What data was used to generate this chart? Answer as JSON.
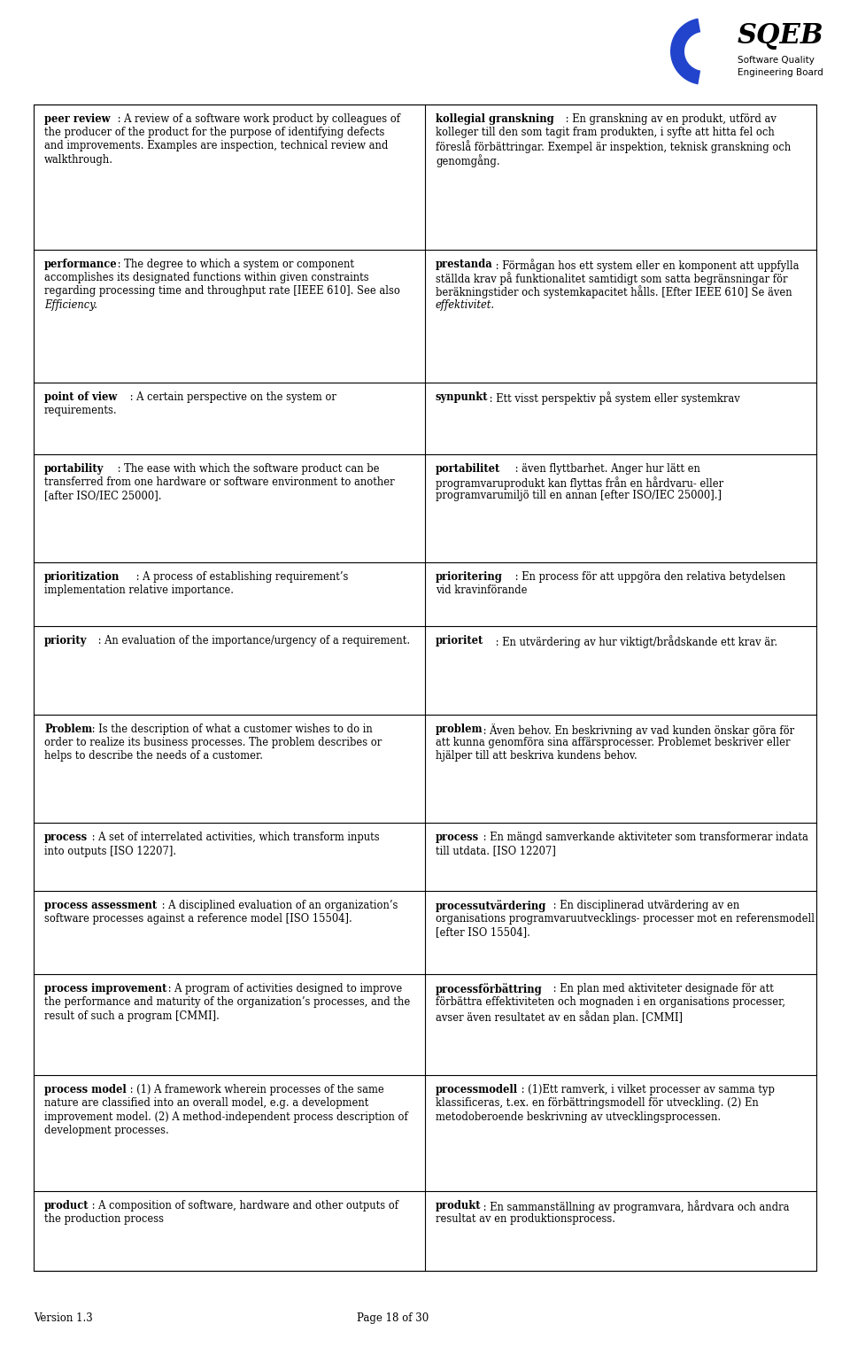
{
  "bg_color": "#ffffff",
  "footer_version": "Version 1.3",
  "footer_page": "Page 18 of 30",
  "rows": [
    {
      "left_bold": "peer review",
      "left_rest": ": A review of a software work product by colleagues of the producer of the product for the purpose of identifying defects and improvements. Examples are inspection, technical review and walkthrough.",
      "left_italic_part": "",
      "right_bold": "kollegial granskning",
      "right_rest": ": En granskning av en produkt, utförd av kolleger till den som tagit fram produkten, i syfte att hitta fel och föreslå förbättringar. Exempel är inspektion, teknisk granskning och genomgång.",
      "right_italic_part": ""
    },
    {
      "left_bold": "performance",
      "left_rest": ": The degree to which a system or component accomplishes its designated functions within given constraints regarding processing time and throughput rate [IEEE 610]. See also ",
      "left_italic_part": "Efficiency.",
      "right_bold": "prestanda",
      "right_rest": ": Förmågan hos ett system eller en komponent att uppfylla ställda krav på funktionalitet samtidigt som satta begränsningar för beräkningstider och systemkapacitet hålls. [Efter IEEE 610] Se även ",
      "right_italic_part": "effektivitet."
    },
    {
      "left_bold": "point of view",
      "left_rest": ": A certain perspective on the system or requirements.",
      "left_italic_part": "",
      "right_bold": "synpunkt",
      "right_rest": ": Ett visst perspektiv på system eller systemkrav",
      "right_italic_part": ""
    },
    {
      "left_bold": "portability",
      "left_rest": ": The ease with which the software product can be transferred from one hardware or software environment to another [after ISO/IEC 25000].",
      "left_italic_part": "",
      "right_bold": "portabilitet",
      "right_rest": ": även flyttbarhet. Anger hur lätt en programvaruprodukt kan flyttas från en hårdvaru- eller programvarumiljö till en annan [efter ISO/IEC 25000].]",
      "right_italic_part": ""
    },
    {
      "left_bold": "prioritization",
      "left_rest": ": A process of establishing requirement’s implementation relative importance.",
      "left_italic_part": "",
      "right_bold": "prioritering",
      "right_rest": ": En process för att uppgöra den relativa betydelsen vid kravinförande",
      "right_italic_part": ""
    },
    {
      "left_bold": "priority",
      "left_rest": ": An evaluation of the importance/urgency of a requirement.",
      "left_italic_part": "",
      "right_bold": "prioritet",
      "right_rest": ": En utvärdering av hur viktigt/brådskande ett krav är.",
      "right_italic_part": ""
    },
    {
      "left_bold": "Problem",
      "left_bold_underline": true,
      "left_rest": ": Is the description of what a customer wishes to do in order to realize its business processes. The problem describes or helps to describe the needs of a customer.",
      "left_italic_part": "",
      "right_bold": "problem",
      "right_rest": ": Även behov. En beskrivning av vad kunden önskar göra för att kunna genomföra sina affärsprocesser. Problemet beskriver eller hjälper till att beskriva kundens behov.",
      "right_italic_part": ""
    },
    {
      "left_bold": "process",
      "left_rest": ": A set of interrelated activities, which transform inputs into outputs [ISO 12207].",
      "left_italic_part": "",
      "right_bold": "process",
      "right_rest": ": En mängd samverkande aktiviteter som transformerar indata till utdata. [ISO 12207]",
      "right_italic_part": ""
    },
    {
      "left_bold": "process assessment",
      "left_rest": ": A disciplined evaluation of an organization’s software processes against a reference model [ISO 15504].",
      "left_italic_part": "",
      "right_bold": "processutvärdering",
      "right_rest": ": En disciplinerad utvärdering av en organisations programvaruutvecklings- processer mot en referensmodell [efter ISO 15504].",
      "right_italic_part": ""
    },
    {
      "left_bold": "process improvement",
      "left_rest": ": A program of activities designed to improve the performance and maturity of the organization’s processes, and the result of such a program [CMMI].",
      "left_italic_part": "",
      "right_bold": "processförbättring",
      "right_rest": ": En plan med aktiviteter designade för att förbättra effektiviteten och mognaden i en organisations processer, avser även resultatet av en sådan plan. [CMMI]",
      "right_italic_part": ""
    },
    {
      "left_bold": "process model",
      "left_rest": ": (1) A framework wherein processes of the same nature are classified into an overall model, e.g. a development improvement model. (2) A method-independent process description of development processes.",
      "left_italic_part": "",
      "right_bold": "processmodell",
      "right_rest": ": (1)Ett ramverk, i vilket processer av samma typ klassificeras, t.ex. en förbättringsmodell för utveckling. (2) En metodoberoende beskrivning av utvecklingsprocessen.",
      "right_italic_part": ""
    },
    {
      "left_bold": "product",
      "left_rest": ": A composition of software, hardware and other outputs of the production process",
      "left_italic_part": "",
      "right_bold": "produkt",
      "right_rest": ": En sammanställning av programvara, hårdvara och andra resultat av en produktionsprocess.",
      "right_italic_part": ""
    }
  ]
}
